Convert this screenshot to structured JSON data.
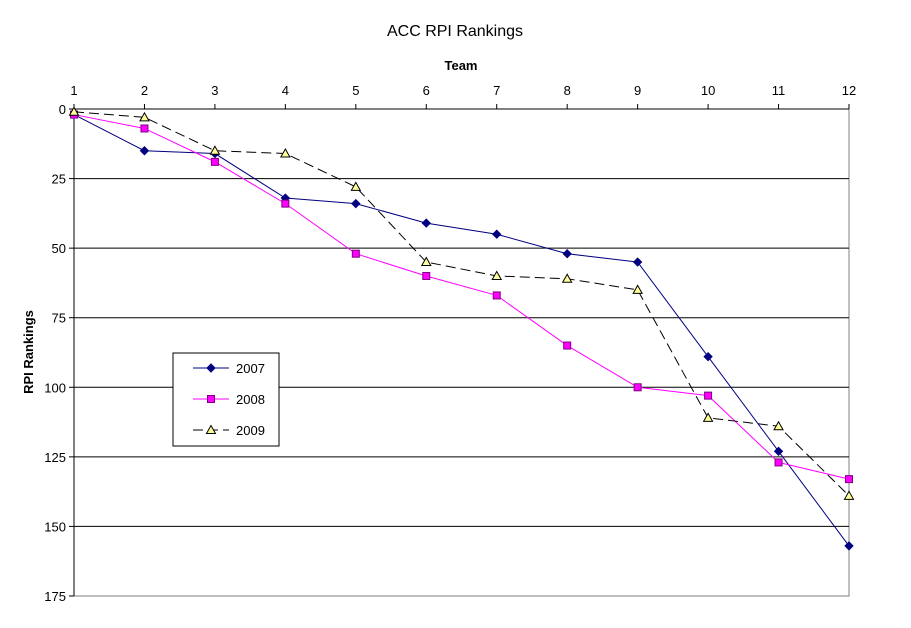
{
  "chart_data": {
    "type": "line",
    "title": "ACC RPI Rankings",
    "xlabel": "Team",
    "ylabel": "RPI Rankings",
    "x": [
      1,
      2,
      3,
      4,
      5,
      6,
      7,
      8,
      9,
      10,
      11,
      12
    ],
    "xlim": [
      1,
      12
    ],
    "ylim": [
      0,
      175
    ],
    "y_inverted": true,
    "x_axis_position": "top",
    "yticks": [
      0,
      25,
      50,
      75,
      100,
      125,
      150,
      175
    ],
    "grid": "horizontal",
    "legend_position": "left",
    "series": [
      {
        "name": "2007",
        "color": "#000080",
        "marker": "diamond",
        "dash": "solid",
        "values": [
          2,
          15,
          16,
          32,
          34,
          41,
          45,
          52,
          55,
          89,
          123,
          157
        ]
      },
      {
        "name": "2008",
        "color": "#ff00ff",
        "marker": "square",
        "dash": "solid",
        "values": [
          2,
          7,
          19,
          34,
          52,
          60,
          67,
          85,
          100,
          103,
          127,
          133
        ]
      },
      {
        "name": "2009",
        "color": "#000000",
        "marker": "triangle",
        "dash": "dashed",
        "marker_fill": "#ffff99",
        "values": [
          1,
          3,
          15,
          16,
          28,
          55,
          60,
          61,
          65,
          111,
          114,
          139
        ]
      }
    ]
  }
}
